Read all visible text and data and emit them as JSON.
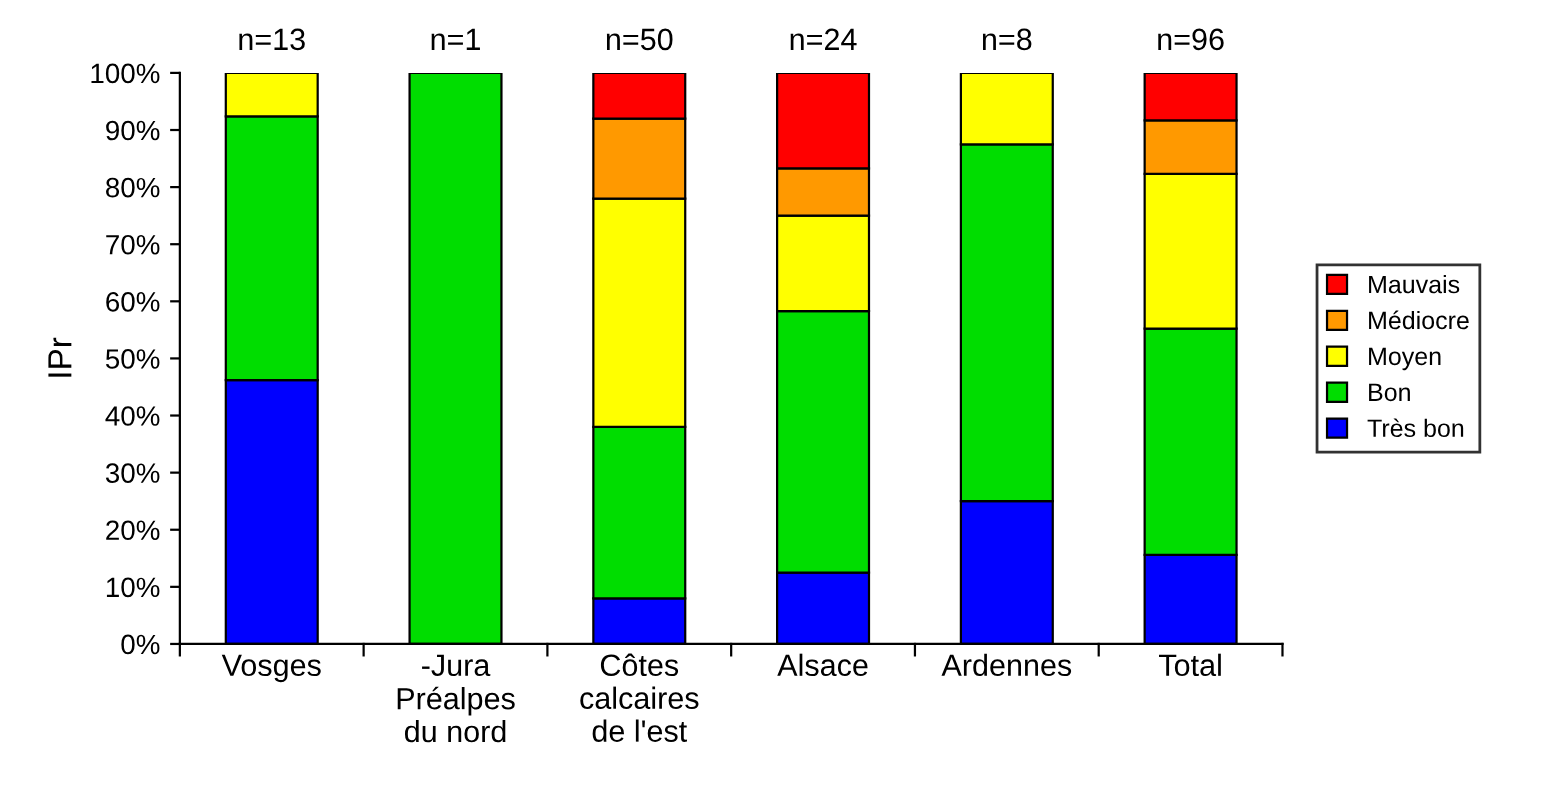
{
  "chart_data": {
    "type": "bar",
    "stacked": true,
    "ylabel": "IPr",
    "categories": [
      "Vosges",
      "-Jura\nPréalpes\ndu nord",
      "Côtes\ncalcaires\nde l'est",
      "Alsace",
      "Ardennes",
      "Total"
    ],
    "series": [
      {
        "name": "Très bon",
        "color": "#0000ff",
        "values": [
          46.2,
          null,
          8,
          12.5,
          25,
          15.6
        ]
      },
      {
        "name": "Bon",
        "color": "#00dd00",
        "values": [
          46.2,
          100,
          30,
          45.8,
          62.5,
          39.6
        ]
      },
      {
        "name": "Moyen",
        "color": "#ffff00",
        "values": [
          7.6,
          null,
          40,
          16.7,
          12.5,
          27.1
        ]
      },
      {
        "name": "Médiocre",
        "color": "#ff9900",
        "values": [
          null,
          null,
          14,
          8.3,
          null,
          9.4
        ]
      },
      {
        "name": "Mauvais",
        "color": "#ff0000",
        "values": [
          null,
          null,
          8,
          16.7,
          null,
          8.3
        ]
      }
    ],
    "annotations": [
      {
        "text": "n=13",
        "x": "Vosges",
        "y": 100
      },
      {
        "text": "n=1",
        "x": "-Jura\nPréalpes\ndu nord",
        "y": 100
      },
      {
        "text": "n=50",
        "x": "Côtes\ncalcaires\nde l'est",
        "y": 100
      },
      {
        "text": "n=24",
        "x": "Alsace",
        "y": 100
      },
      {
        "text": "n=8",
        "x": "Ardennes",
        "y": 100
      },
      {
        "text": "n=96",
        "x": "Total",
        "y": 100
      }
    ],
    "ylim": [
      0,
      100
    ],
    "yticks": [
      {
        "value": 0,
        "label": "0%"
      },
      {
        "value": 10,
        "label": "10%"
      },
      {
        "value": 20,
        "label": "20%"
      },
      {
        "value": 30,
        "label": "30%"
      },
      {
        "value": 40,
        "label": "40%"
      },
      {
        "value": 50,
        "label": "50%"
      },
      {
        "value": 60,
        "label": "60%"
      },
      {
        "value": 70,
        "label": "70%"
      },
      {
        "value": 80,
        "label": "80%"
      },
      {
        "value": 90,
        "label": "90%"
      },
      {
        "value": 100,
        "label": "100%"
      }
    ],
    "grid": false,
    "legend": "right"
  }
}
